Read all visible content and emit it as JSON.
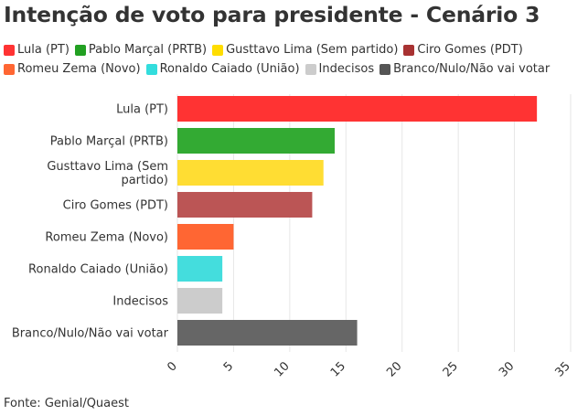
{
  "title": "Intenção de voto para presidente - Cenário 3",
  "source": "Fonte: Genial/Quaest",
  "chart_data": {
    "type": "bar",
    "orientation": "horizontal",
    "title": "Intenção de voto para presidente - Cenário 3",
    "xlabel": "",
    "ylabel": "",
    "xlim": [
      0,
      35
    ],
    "xticks": [
      "0",
      "5",
      "10",
      "15",
      "20",
      "25",
      "30",
      "35"
    ],
    "grid": true,
    "legend_position": "top",
    "categories": [
      "Lula (PT)",
      "Pablo Marçal (PRTB)",
      "Gusttavo Lima (Sem partido)",
      "Ciro Gomes (PDT)",
      "Romeu Zema (Novo)",
      "Ronaldo Caiado (União)",
      "Indecisos",
      "Branco/Nulo/Não vai votar"
    ],
    "category_label_lines": [
      [
        "Lula (PT)"
      ],
      [
        "Pablo Marçal (PRTB)"
      ],
      [
        "Gusttavo Lima (Sem",
        "partido)"
      ],
      [
        "Ciro Gomes (PDT)"
      ],
      [
        "Romeu Zema (Novo)"
      ],
      [
        "Ronaldo Caiado (União)"
      ],
      [
        "Indecisos"
      ],
      [
        "Branco/Nulo/Não vai votar"
      ]
    ],
    "values": [
      32,
      14,
      13,
      12,
      5,
      4,
      4,
      16
    ],
    "colors": [
      "#ff3333",
      "#33aa33",
      "#ffdd33",
      "#bb5555",
      "#ff6633",
      "#44dddd",
      "#cccccc",
      "#666666"
    ]
  },
  "legend": [
    {
      "label": "Lula (PT)",
      "color": "#ff3333"
    },
    {
      "label": "Pablo Marçal (PRTB)",
      "color": "#22a022"
    },
    {
      "label": "Gusttavo Lima (Sem partido)",
      "color": "#ffdd00"
    },
    {
      "label": "Ciro Gomes (PDT)",
      "color": "#a83232"
    },
    {
      "label": "Romeu Zema (Novo)",
      "color": "#ff6633"
    },
    {
      "label": "Ronaldo Caiado (União)",
      "color": "#33dddd"
    },
    {
      "label": "Indecisos",
      "color": "#cccccc"
    },
    {
      "label": "Branco/Nulo/Não vai votar",
      "color": "#555555"
    }
  ]
}
